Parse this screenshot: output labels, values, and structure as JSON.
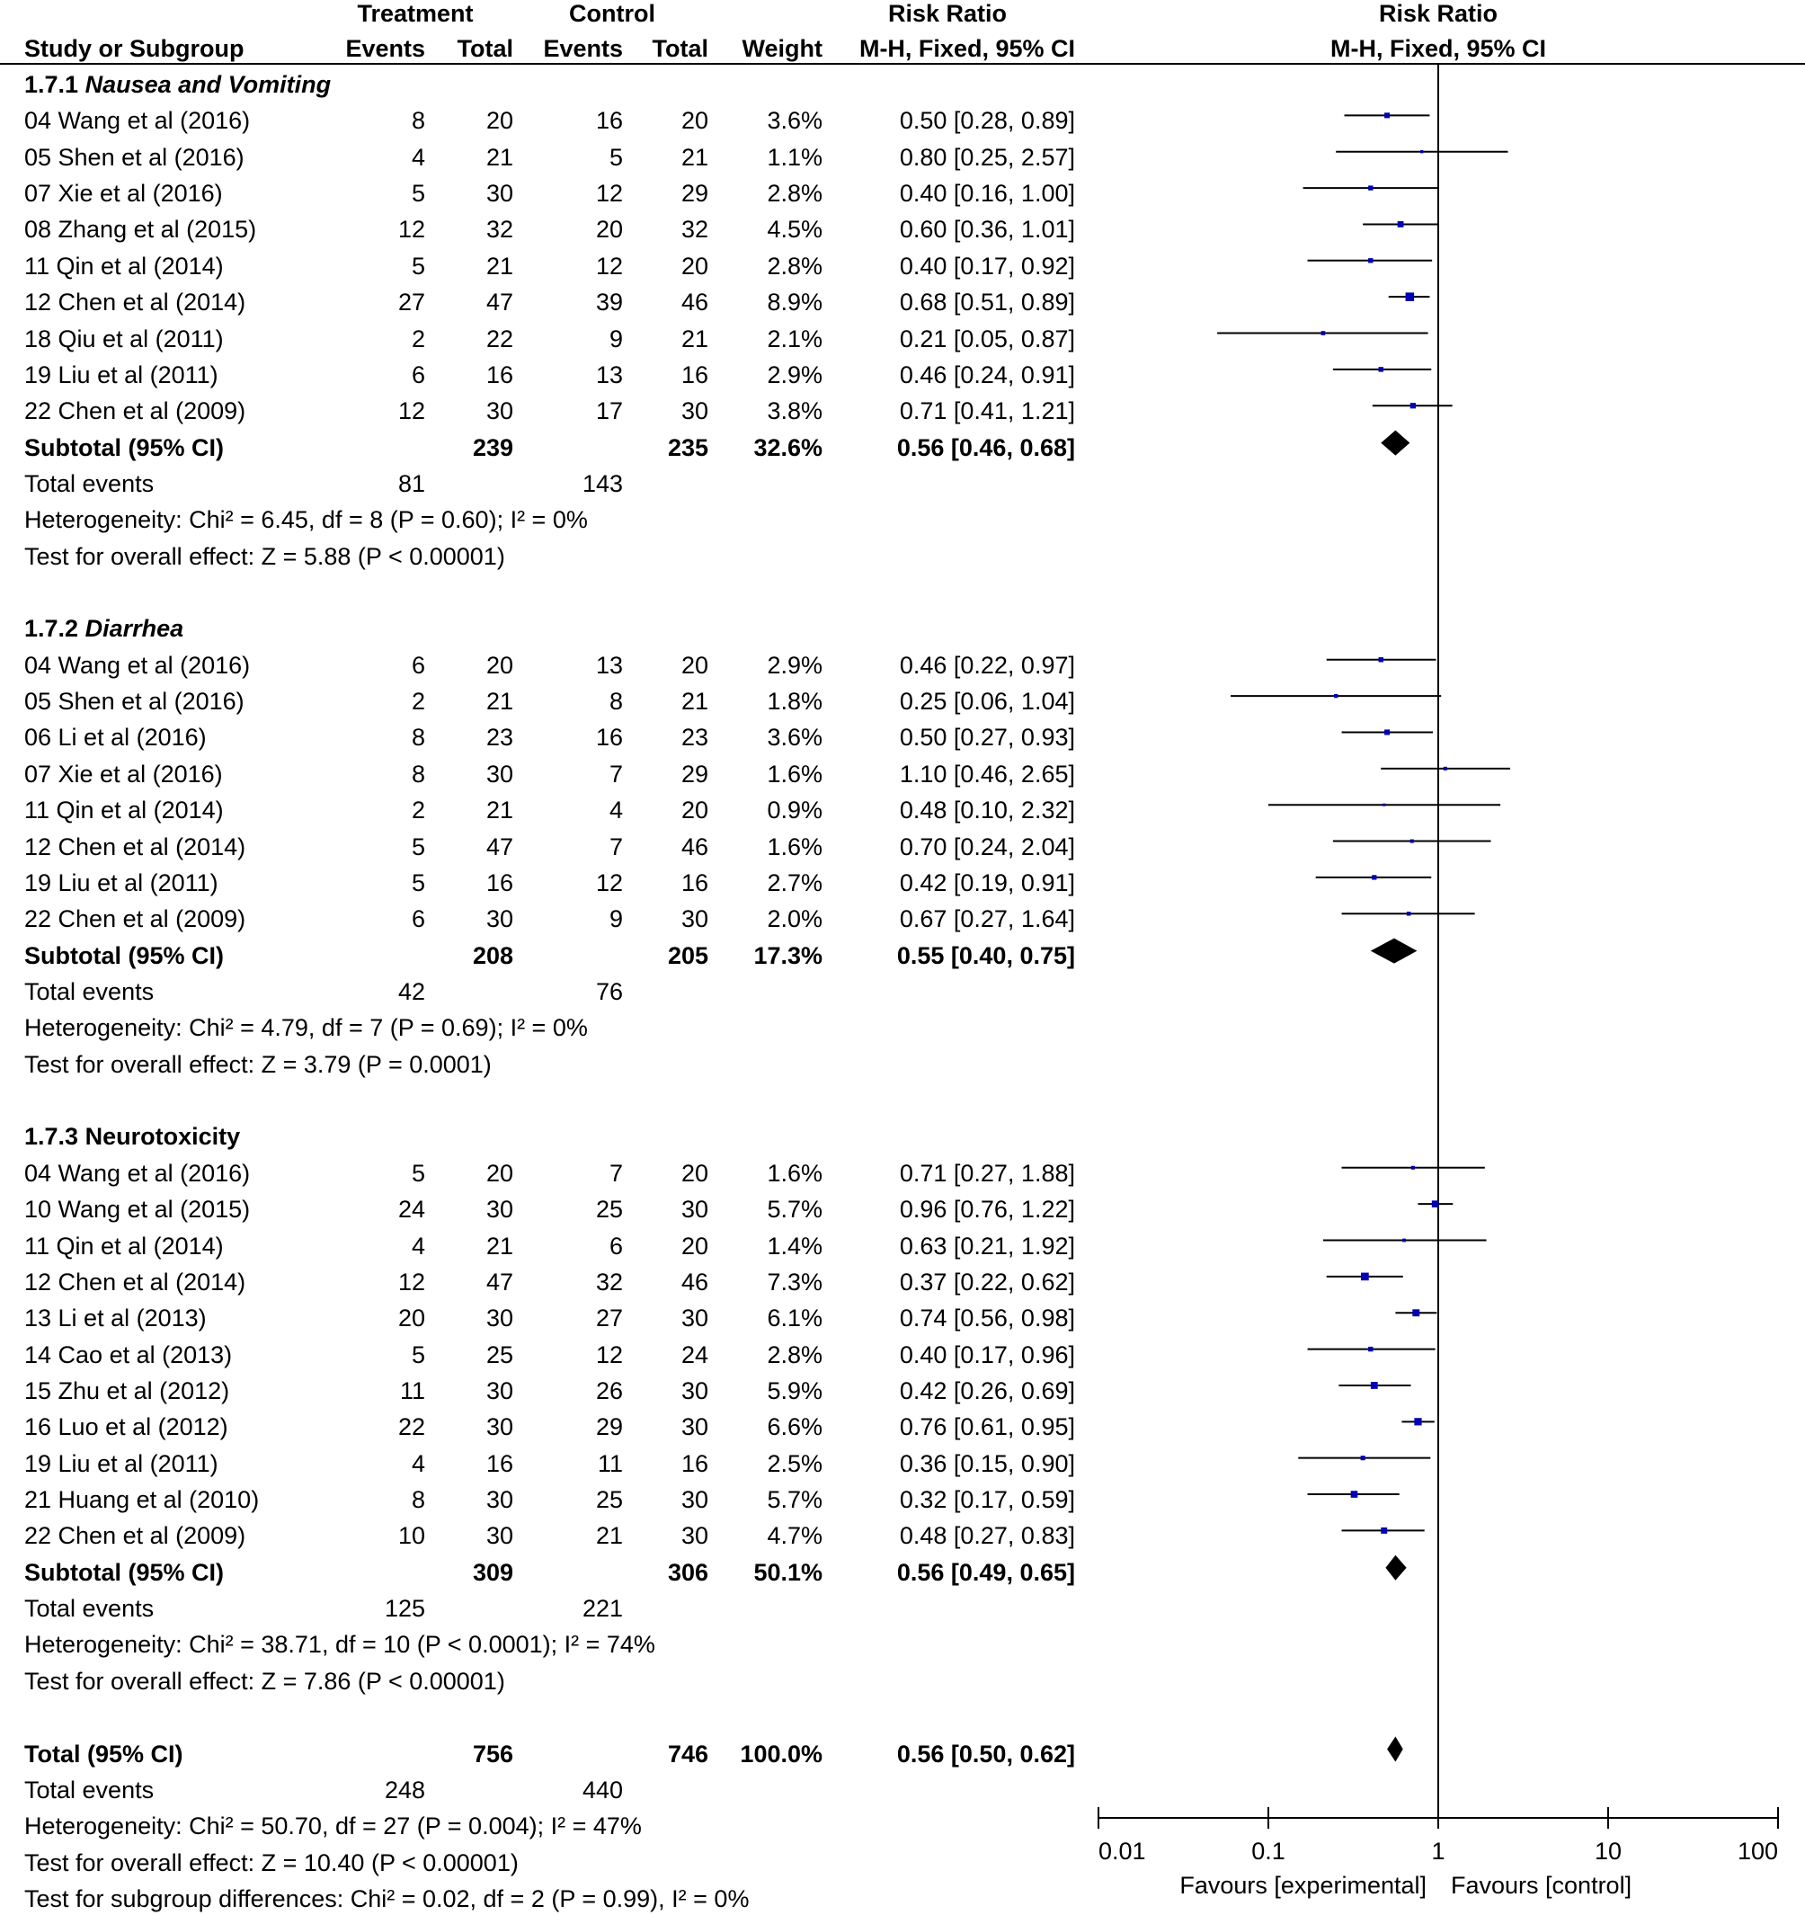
{
  "chart_data": {
    "type": "scatter",
    "xscale": "log",
    "xlim": [
      0.01,
      100
    ],
    "header": {
      "treatment": "Treatment",
      "control": "Control",
      "risk_ratio": "Risk Ratio",
      "risk_ratio_plot": "Risk Ratio",
      "study_or_subgroup": "Study or Subgroup",
      "treatment_events": "Events",
      "treatment_total": "Total",
      "control_events": "Events",
      "control_total": "Total",
      "weight": "Weight",
      "method": "M-H, Fixed, 95% CI",
      "method_plot": "M-H, Fixed, 95% CI"
    },
    "labels": {
      "subtotal": "Subtotal (95% CI)",
      "total_events": "Total events",
      "total": "Total (95% CI)"
    },
    "x_axis": {
      "ticks": [
        "0.01",
        "0.1",
        "1",
        "10",
        "100"
      ],
      "favours_left": "Favours [experimental]",
      "favours_right": "Favours [control]"
    },
    "colors": {
      "marker": "#0000b4",
      "diamond": "#000000",
      "lines": "#000000"
    },
    "subgroups": [
      {
        "code": "1.7.1",
        "name": "Nausea and Vomiting",
        "studies": [
          {
            "study": "04 Wang et al (2016)",
            "treatment_events": 8,
            "treatment_total": 20,
            "control_events": 16,
            "control_total": 20,
            "weight": "3.6%",
            "effect": "0.50 [0.28, 0.89]",
            "rr": 0.5,
            "ci_low": 0.28,
            "ci_high": 0.89
          },
          {
            "study": "05 Shen et al (2016)",
            "treatment_events": 4,
            "treatment_total": 21,
            "control_events": 5,
            "control_total": 21,
            "weight": "1.1%",
            "effect": "0.80 [0.25, 2.57]",
            "rr": 0.8,
            "ci_low": 0.25,
            "ci_high": 2.57
          },
          {
            "study": "07 Xie et al (2016)",
            "treatment_events": 5,
            "treatment_total": 30,
            "control_events": 12,
            "control_total": 29,
            "weight": "2.8%",
            "effect": "0.40 [0.16, 1.00]",
            "rr": 0.4,
            "ci_low": 0.16,
            "ci_high": 1.0
          },
          {
            "study": "08 Zhang et al (2015)",
            "treatment_events": 12,
            "treatment_total": 32,
            "control_events": 20,
            "control_total": 32,
            "weight": "4.5%",
            "effect": "0.60 [0.36, 1.01]",
            "rr": 0.6,
            "ci_low": 0.36,
            "ci_high": 1.01
          },
          {
            "study": "11 Qin et al (2014)",
            "treatment_events": 5,
            "treatment_total": 21,
            "control_events": 12,
            "control_total": 20,
            "weight": "2.8%",
            "effect": "0.40 [0.17, 0.92]",
            "rr": 0.4,
            "ci_low": 0.17,
            "ci_high": 0.92
          },
          {
            "study": "12 Chen et al (2014)",
            "treatment_events": 27,
            "treatment_total": 47,
            "control_events": 39,
            "control_total": 46,
            "weight": "8.9%",
            "effect": "0.68 [0.51, 0.89]",
            "rr": 0.68,
            "ci_low": 0.51,
            "ci_high": 0.89
          },
          {
            "study": "18 Qiu et al (2011)",
            "treatment_events": 2,
            "treatment_total": 22,
            "control_events": 9,
            "control_total": 21,
            "weight": "2.1%",
            "effect": "0.21 [0.05, 0.87]",
            "rr": 0.21,
            "ci_low": 0.05,
            "ci_high": 0.87
          },
          {
            "study": "19 Liu et al (2011)",
            "treatment_events": 6,
            "treatment_total": 16,
            "control_events": 13,
            "control_total": 16,
            "weight": "2.9%",
            "effect": "0.46 [0.24, 0.91]",
            "rr": 0.46,
            "ci_low": 0.24,
            "ci_high": 0.91
          },
          {
            "study": "22 Chen et al (2009)",
            "treatment_events": 12,
            "treatment_total": 30,
            "control_events": 17,
            "control_total": 30,
            "weight": "3.8%",
            "effect": "0.71 [0.41, 1.21]",
            "rr": 0.71,
            "ci_low": 0.41,
            "ci_high": 1.21
          }
        ],
        "subtotal": {
          "treatment_total": 239,
          "control_total": 235,
          "weight": "32.6%",
          "effect": "0.56 [0.46, 0.68]",
          "rr": 0.56,
          "ci_low": 0.46,
          "ci_high": 0.68
        },
        "total_events": {
          "treatment": 81,
          "control": 143
        },
        "heterogeneity": "Heterogeneity: Chi² = 6.45, df = 8 (P = 0.60); I² = 0%",
        "overall_effect": "Test for overall effect: Z = 5.88 (P < 0.00001)"
      },
      {
        "code": "1.7.2",
        "name": "Diarrhea",
        "studies": [
          {
            "study": "04 Wang et al (2016)",
            "treatment_events": 6,
            "treatment_total": 20,
            "control_events": 13,
            "control_total": 20,
            "weight": "2.9%",
            "effect": "0.46 [0.22, 0.97]",
            "rr": 0.46,
            "ci_low": 0.22,
            "ci_high": 0.97
          },
          {
            "study": "05 Shen et al (2016)",
            "treatment_events": 2,
            "treatment_total": 21,
            "control_events": 8,
            "control_total": 21,
            "weight": "1.8%",
            "effect": "0.25 [0.06, 1.04]",
            "rr": 0.25,
            "ci_low": 0.06,
            "ci_high": 1.04
          },
          {
            "study": "06 Li et al (2016)",
            "treatment_events": 8,
            "treatment_total": 23,
            "control_events": 16,
            "control_total": 23,
            "weight": "3.6%",
            "effect": "0.50 [0.27, 0.93]",
            "rr": 0.5,
            "ci_low": 0.27,
            "ci_high": 0.93
          },
          {
            "study": "07 Xie et al (2016)",
            "treatment_events": 8,
            "treatment_total": 30,
            "control_events": 7,
            "control_total": 29,
            "weight": "1.6%",
            "effect": "1.10 [0.46, 2.65]",
            "rr": 1.1,
            "ci_low": 0.46,
            "ci_high": 2.65
          },
          {
            "study": "11 Qin et al (2014)",
            "treatment_events": 2,
            "treatment_total": 21,
            "control_events": 4,
            "control_total": 20,
            "weight": "0.9%",
            "effect": "0.48 [0.10, 2.32]",
            "rr": 0.48,
            "ci_low": 0.1,
            "ci_high": 2.32
          },
          {
            "study": "12 Chen et al (2014)",
            "treatment_events": 5,
            "treatment_total": 47,
            "control_events": 7,
            "control_total": 46,
            "weight": "1.6%",
            "effect": "0.70 [0.24, 2.04]",
            "rr": 0.7,
            "ci_low": 0.24,
            "ci_high": 2.04
          },
          {
            "study": "19 Liu et al (2011)",
            "treatment_events": 5,
            "treatment_total": 16,
            "control_events": 12,
            "control_total": 16,
            "weight": "2.7%",
            "effect": "0.42 [0.19, 0.91]",
            "rr": 0.42,
            "ci_low": 0.19,
            "ci_high": 0.91
          },
          {
            "study": "22 Chen et al (2009)",
            "treatment_events": 6,
            "treatment_total": 30,
            "control_events": 9,
            "control_total": 30,
            "weight": "2.0%",
            "effect": "0.67 [0.27, 1.64]",
            "rr": 0.67,
            "ci_low": 0.27,
            "ci_high": 1.64
          }
        ],
        "subtotal": {
          "treatment_total": 208,
          "control_total": 205,
          "weight": "17.3%",
          "effect": "0.55 [0.40, 0.75]",
          "rr": 0.55,
          "ci_low": 0.4,
          "ci_high": 0.75
        },
        "total_events": {
          "treatment": 42,
          "control": 76
        },
        "heterogeneity": "Heterogeneity: Chi² = 4.79, df = 7 (P = 0.69); I² = 0%",
        "overall_effect": "Test for overall effect: Z = 3.79 (P = 0.0001)"
      },
      {
        "code": "1.7.3",
        "name": "Neurotoxicity",
        "studies": [
          {
            "study": "04 Wang et al (2016)",
            "treatment_events": 5,
            "treatment_total": 20,
            "control_events": 7,
            "control_total": 20,
            "weight": "1.6%",
            "effect": "0.71 [0.27, 1.88]",
            "rr": 0.71,
            "ci_low": 0.27,
            "ci_high": 1.88
          },
          {
            "study": "10 Wang et al (2015)",
            "treatment_events": 24,
            "treatment_total": 30,
            "control_events": 25,
            "control_total": 30,
            "weight": "5.7%",
            "effect": "0.96 [0.76, 1.22]",
            "rr": 0.96,
            "ci_low": 0.76,
            "ci_high": 1.22
          },
          {
            "study": "11 Qin et al (2014)",
            "treatment_events": 4,
            "treatment_total": 21,
            "control_events": 6,
            "control_total": 20,
            "weight": "1.4%",
            "effect": "0.63 [0.21, 1.92]",
            "rr": 0.63,
            "ci_low": 0.21,
            "ci_high": 1.92
          },
          {
            "study": "12 Chen et al (2014)",
            "treatment_events": 12,
            "treatment_total": 47,
            "control_events": 32,
            "control_total": 46,
            "weight": "7.3%",
            "effect": "0.37 [0.22, 0.62]",
            "rr": 0.37,
            "ci_low": 0.22,
            "ci_high": 0.62
          },
          {
            "study": "13 Li et al (2013)",
            "treatment_events": 20,
            "treatment_total": 30,
            "control_events": 27,
            "control_total": 30,
            "weight": "6.1%",
            "effect": "0.74 [0.56, 0.98]",
            "rr": 0.74,
            "ci_low": 0.56,
            "ci_high": 0.98
          },
          {
            "study": "14 Cao et al (2013)",
            "treatment_events": 5,
            "treatment_total": 25,
            "control_events": 12,
            "control_total": 24,
            "weight": "2.8%",
            "effect": "0.40 [0.17, 0.96]",
            "rr": 0.4,
            "ci_low": 0.17,
            "ci_high": 0.96
          },
          {
            "study": "15 Zhu et al (2012)",
            "treatment_events": 11,
            "treatment_total": 30,
            "control_events": 26,
            "control_total": 30,
            "weight": "5.9%",
            "effect": "0.42 [0.26, 0.69]",
            "rr": 0.42,
            "ci_low": 0.26,
            "ci_high": 0.69
          },
          {
            "study": "16 Luo et al (2012)",
            "treatment_events": 22,
            "treatment_total": 30,
            "control_events": 29,
            "control_total": 30,
            "weight": "6.6%",
            "effect": "0.76 [0.61, 0.95]",
            "rr": 0.76,
            "ci_low": 0.61,
            "ci_high": 0.95
          },
          {
            "study": "19 Liu et al (2011)",
            "treatment_events": 4,
            "treatment_total": 16,
            "control_events": 11,
            "control_total": 16,
            "weight": "2.5%",
            "effect": "0.36 [0.15, 0.90]",
            "rr": 0.36,
            "ci_low": 0.15,
            "ci_high": 0.9
          },
          {
            "study": "21 Huang et al (2010)",
            "treatment_events": 8,
            "treatment_total": 30,
            "control_events": 25,
            "control_total": 30,
            "weight": "5.7%",
            "effect": "0.32 [0.17, 0.59]",
            "rr": 0.32,
            "ci_low": 0.17,
            "ci_high": 0.59
          },
          {
            "study": "22 Chen et al (2009)",
            "treatment_events": 10,
            "treatment_total": 30,
            "control_events": 21,
            "control_total": 30,
            "weight": "4.7%",
            "effect": "0.48 [0.27, 0.83]",
            "rr": 0.48,
            "ci_low": 0.27,
            "ci_high": 0.83
          }
        ],
        "subtotal": {
          "treatment_total": 309,
          "control_total": 306,
          "weight": "50.1%",
          "effect": "0.56 [0.49, 0.65]",
          "rr": 0.56,
          "ci_low": 0.49,
          "ci_high": 0.65
        },
        "total_events": {
          "treatment": 125,
          "control": 221
        },
        "heterogeneity": "Heterogeneity: Chi² = 38.71, df = 10 (P < 0.0001); I² = 74%",
        "overall_effect": "Test for overall effect: Z = 7.86 (P < 0.00001)"
      }
    ],
    "total": {
      "treatment_total": 756,
      "control_total": 746,
      "weight": "100.0%",
      "effect": "0.56 [0.50, 0.62]",
      "rr": 0.56,
      "ci_low": 0.5,
      "ci_high": 0.62,
      "total_events": {
        "treatment": 248,
        "control": 440
      },
      "heterogeneity": "Heterogeneity: Chi² = 50.70, df = 27 (P = 0.004); I² = 47%",
      "overall_effect": "Test for overall effect: Z = 10.40 (P < 0.00001)",
      "subgroup_differences": "Test for subgroup differences: Chi² = 0.02, df = 2 (P = 0.99), I² = 0%"
    }
  }
}
